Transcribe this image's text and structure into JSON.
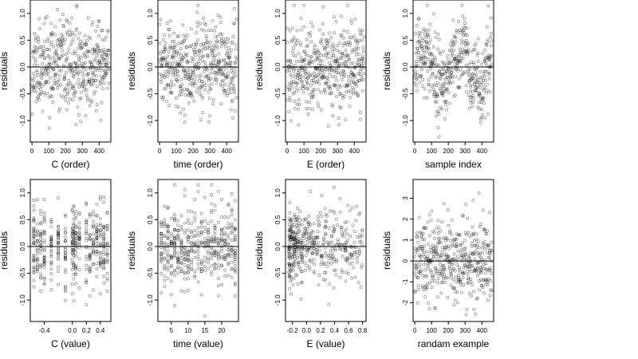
{
  "chart_data": [
    {
      "type": "scatter",
      "xlabel": "C (order)",
      "ylabel": "residuals",
      "xlim": [
        -10,
        470
      ],
      "ylim": [
        -1.4,
        1.25
      ],
      "xticks": [
        {
          "v": 0,
          "t": "0"
        },
        {
          "v": 100,
          "t": "100"
        },
        {
          "v": 200,
          "t": "200"
        },
        {
          "v": 300,
          "t": "300"
        },
        {
          "v": 400,
          "t": "400"
        }
      ],
      "yticks": [
        {
          "v": -1,
          "t": "-1.0"
        },
        {
          "v": -0.5,
          "t": "-0.5"
        },
        {
          "v": 0,
          "t": "0.0"
        },
        {
          "v": 0.5,
          "t": "0.5"
        },
        {
          "v": 1,
          "t": "1.0"
        }
      ],
      "hline": 0,
      "gen": {
        "mode": "order",
        "seed": 11
      }
    },
    {
      "type": "scatter",
      "xlabel": "time (order)",
      "ylabel": "residuals",
      "xlim": [
        -10,
        470
      ],
      "ylim": [
        -1.4,
        1.25
      ],
      "xticks": [
        {
          "v": 0,
          "t": "0"
        },
        {
          "v": 100,
          "t": "100"
        },
        {
          "v": 200,
          "t": "200"
        },
        {
          "v": 300,
          "t": "300"
        },
        {
          "v": 400,
          "t": "400"
        }
      ],
      "yticks": [
        {
          "v": -1,
          "t": "-1.0"
        },
        {
          "v": -0.5,
          "t": "-0.5"
        },
        {
          "v": 0,
          "t": "0.0"
        },
        {
          "v": 0.5,
          "t": "0.5"
        },
        {
          "v": 1,
          "t": "1.0"
        }
      ],
      "hline": 0,
      "gen": {
        "mode": "order",
        "seed": 23
      }
    },
    {
      "type": "scatter",
      "xlabel": "E (order)",
      "ylabel": "residuals",
      "xlim": [
        -10,
        470
      ],
      "ylim": [
        -1.4,
        1.25
      ],
      "xticks": [
        {
          "v": 0,
          "t": "0"
        },
        {
          "v": 100,
          "t": "100"
        },
        {
          "v": 200,
          "t": "200"
        },
        {
          "v": 300,
          "t": "300"
        },
        {
          "v": 400,
          "t": "400"
        }
      ],
      "yticks": [
        {
          "v": -1,
          "t": "-1.0"
        },
        {
          "v": -0.5,
          "t": "-0.5"
        },
        {
          "v": 0,
          "t": "0.0"
        },
        {
          "v": 0.5,
          "t": "0.5"
        },
        {
          "v": 1,
          "t": "1.0"
        }
      ],
      "hline": 0,
      "gen": {
        "mode": "order",
        "seed": 37
      }
    },
    {
      "type": "scatter",
      "xlabel": "sample index",
      "ylabel": "residuals",
      "xlim": [
        -10,
        470
      ],
      "ylim": [
        -1.4,
        1.25
      ],
      "xticks": [
        {
          "v": 0,
          "t": "0"
        },
        {
          "v": 100,
          "t": "100"
        },
        {
          "v": 200,
          "t": "200"
        },
        {
          "v": 300,
          "t": "300"
        },
        {
          "v": 400,
          "t": "400"
        }
      ],
      "yticks": [
        {
          "v": -1,
          "t": "-1.0"
        },
        {
          "v": -0.5,
          "t": "-0.5"
        },
        {
          "v": 0,
          "t": "0.0"
        },
        {
          "v": 0.5,
          "t": "0.5"
        },
        {
          "v": 1,
          "t": "1.0"
        }
      ],
      "hline": 0,
      "gen": {
        "mode": "wave",
        "seed": 41
      }
    },
    {
      "type": "scatter",
      "xlabel": "C (value)",
      "ylabel": "residuals",
      "xlim": [
        -0.6,
        0.55
      ],
      "ylim": [
        -1.4,
        1.25
      ],
      "xticks": [
        {
          "v": -0.4,
          "t": "-0.4"
        },
        {
          "v": 0,
          "t": "0.0"
        },
        {
          "v": 0.2,
          "t": "0.2"
        },
        {
          "v": 0.4,
          "t": "0.4"
        }
      ],
      "yticks": [
        {
          "v": -1,
          "t": "-1.0"
        },
        {
          "v": -0.5,
          "t": "-0.5"
        },
        {
          "v": 0,
          "t": "0.0"
        },
        {
          "v": 0.5,
          "t": "0.5"
        },
        {
          "v": 1,
          "t": "1.0"
        }
      ],
      "hline": 0,
      "gen": {
        "mode": "columns",
        "seed": 53,
        "cols": [
          -0.55,
          -0.5,
          -0.45,
          -0.4,
          -0.3,
          -0.2,
          -0.1,
          0,
          0.02,
          0.05,
          0.1,
          0.2,
          0.25,
          0.3,
          0.35,
          0.4,
          0.45,
          0.5
        ]
      }
    },
    {
      "type": "scatter",
      "xlabel": "time (value)",
      "ylabel": "residuals",
      "xlim": [
        1,
        25
      ],
      "ylim": [
        -1.4,
        1.25
      ],
      "xticks": [
        {
          "v": 5,
          "t": "5"
        },
        {
          "v": 10,
          "t": "10"
        },
        {
          "v": 15,
          "t": "15"
        },
        {
          "v": 20,
          "t": "20"
        }
      ],
      "yticks": [
        {
          "v": -1,
          "t": "-1.0"
        },
        {
          "v": -0.5,
          "t": "-0.5"
        },
        {
          "v": 0,
          "t": "0.0"
        },
        {
          "v": 0.5,
          "t": "0.5"
        },
        {
          "v": 1,
          "t": "1.0"
        }
      ],
      "hline": 0,
      "gen": {
        "mode": "columns",
        "seed": 67,
        "cols": [
          2,
          3,
          4,
          5,
          6,
          7,
          8,
          9,
          10,
          11,
          12,
          13,
          14,
          15,
          16,
          17,
          18,
          19,
          20,
          21,
          22,
          23,
          24
        ]
      }
    },
    {
      "type": "scatter",
      "xlabel": "E (value)",
      "ylabel": "residuals",
      "xlim": [
        -0.3,
        0.85
      ],
      "ylim": [
        -1.4,
        1.25
      ],
      "xticks": [
        {
          "v": -0.2,
          "t": "-0.2"
        },
        {
          "v": 0,
          "t": "0.0"
        },
        {
          "v": 0.2,
          "t": "0.2"
        },
        {
          "v": 0.4,
          "t": "0.4"
        },
        {
          "v": 0.6,
          "t": "0.6"
        },
        {
          "v": 0.8,
          "t": "0.8"
        }
      ],
      "yticks": [
        {
          "v": -1,
          "t": "-1.0"
        },
        {
          "v": -0.5,
          "t": "-0.5"
        },
        {
          "v": 0,
          "t": "0.0"
        },
        {
          "v": 0.5,
          "t": "0.5"
        },
        {
          "v": 1,
          "t": "1.0"
        }
      ],
      "hline": 0,
      "gen": {
        "mode": "skew",
        "seed": 79
      }
    },
    {
      "type": "scatter",
      "xlabel": "randam example",
      "ylabel": "residuals",
      "xlim": [
        -10,
        470
      ],
      "ylim": [
        -2.9,
        3.9
      ],
      "xticks": [
        {
          "v": 0,
          "t": "0"
        },
        {
          "v": 100,
          "t": "100"
        },
        {
          "v": 200,
          "t": "200"
        },
        {
          "v": 300,
          "t": "300"
        },
        {
          "v": 400,
          "t": "400"
        }
      ],
      "yticks": [
        {
          "v": -2,
          "t": "-2"
        },
        {
          "v": -1,
          "t": "-1"
        },
        {
          "v": 0,
          "t": "0"
        },
        {
          "v": 1,
          "t": "1"
        },
        {
          "v": 2,
          "t": "2"
        },
        {
          "v": 3,
          "t": "3"
        }
      ],
      "hline": 0,
      "gen": {
        "mode": "random",
        "seed": 97
      }
    }
  ]
}
